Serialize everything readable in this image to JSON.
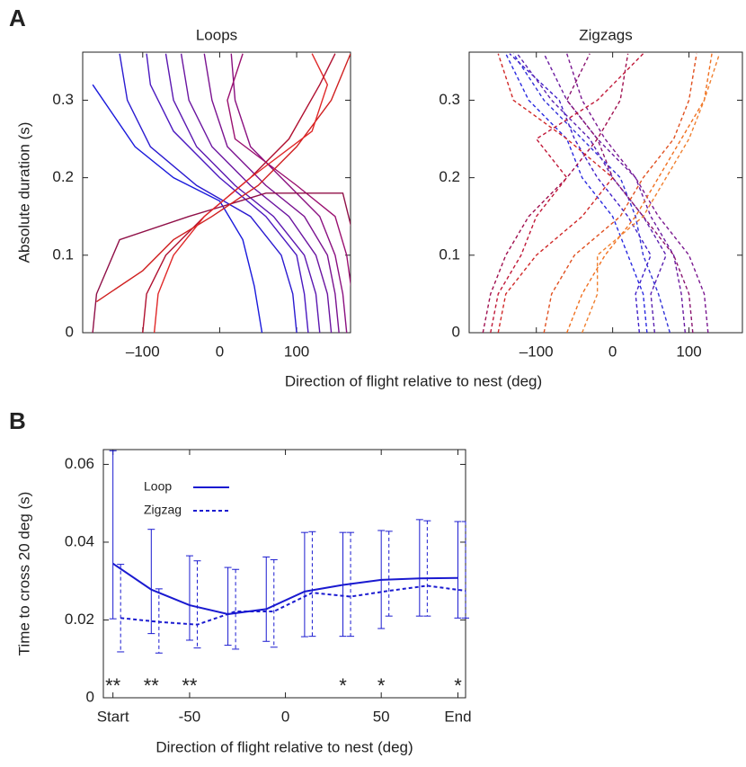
{
  "panel_labels": [
    "A",
    "B"
  ],
  "chart_data": [
    {
      "type": "line",
      "title": "Loops",
      "xlabel": "Direction of flight relative to nest (deg)",
      "ylabel": "Absolute duration (s)",
      "xlim": [
        -178,
        170
      ],
      "ylim": [
        0,
        0.362
      ],
      "xticks": [
        {
          "value": -100,
          "label": "–100"
        },
        0,
        100
      ],
      "yticks": [
        0,
        0.1,
        0.2,
        0.3
      ],
      "dashed": false,
      "series": [
        {
          "color": "#1a1adc",
          "x": [
            55,
            45,
            30,
            0,
            -60,
            -110,
            -165
          ],
          "values": [
            0,
            0.06,
            0.12,
            0.17,
            0.2,
            0.24,
            0.32
          ]
        },
        {
          "color": "#2a1ad0",
          "x": [
            100,
            95,
            80,
            40,
            -30,
            -90,
            -120,
            -130
          ],
          "values": [
            0,
            0.05,
            0.1,
            0.15,
            0.19,
            0.24,
            0.3,
            0.36
          ]
        },
        {
          "color": "#4a18c0",
          "x": [
            115,
            110,
            100,
            60,
            0,
            -60,
            -90,
            -95
          ],
          "values": [
            0,
            0.05,
            0.1,
            0.15,
            0.2,
            0.26,
            0.32,
            0.36
          ]
        },
        {
          "color": "#5a16b0",
          "x": [
            130,
            125,
            110,
            70,
            20,
            -30,
            -60,
            -70
          ],
          "values": [
            0,
            0.05,
            0.1,
            0.15,
            0.19,
            0.24,
            0.3,
            0.36
          ]
        },
        {
          "color": "#6a14a0",
          "x": [
            145,
            140,
            125,
            90,
            40,
            -10,
            -40,
            -50
          ],
          "values": [
            0,
            0.05,
            0.1,
            0.15,
            0.19,
            0.24,
            0.3,
            0.36
          ]
        },
        {
          "color": "#7a1290",
          "x": [
            155,
            150,
            140,
            110,
            60,
            10,
            -10,
            -20
          ],
          "values": [
            0,
            0.05,
            0.1,
            0.15,
            0.19,
            0.24,
            0.3,
            0.36
          ]
        },
        {
          "color": "#8a1080",
          "x": [
            165,
            160,
            150,
            130,
            90,
            40,
            20,
            15
          ],
          "values": [
            0,
            0.05,
            0.1,
            0.15,
            0.19,
            0.24,
            0.3,
            0.36
          ]
        },
        {
          "color": "#9a1070",
          "x": [
            175,
            172,
            165,
            150,
            100,
            20,
            10,
            30
          ],
          "values": [
            0,
            0.05,
            0.1,
            0.15,
            0.19,
            0.25,
            0.3,
            0.36
          ]
        },
        {
          "color": "#901048",
          "x": [
            -165,
            -160,
            -130,
            -40,
            60,
            160,
            175
          ],
          "values": [
            0,
            0.05,
            0.12,
            0.15,
            0.18,
            0.18,
            0.12
          ]
        },
        {
          "color": "#b01030",
          "x": [
            -100,
            -95,
            -70,
            -20,
            40,
            90,
            130,
            150
          ],
          "values": [
            0,
            0.05,
            0.1,
            0.15,
            0.2,
            0.25,
            0.32,
            0.36
          ]
        },
        {
          "color": "#d02020",
          "x": [
            -160,
            -100,
            -60,
            -10,
            50,
            100,
            145,
            170
          ],
          "values": [
            0.04,
            0.08,
            0.12,
            0.15,
            0.19,
            0.24,
            0.3,
            0.36
          ]
        },
        {
          "color": "#e02828",
          "x": [
            -85,
            -80,
            -60,
            -20,
            40,
            120,
            140,
            120
          ],
          "values": [
            0,
            0.05,
            0.1,
            0.15,
            0.2,
            0.26,
            0.32,
            0.36
          ]
        }
      ]
    },
    {
      "type": "line",
      "title": "Zigzags",
      "xlim": [
        -188,
        170
      ],
      "ylim": [
        0,
        0.362
      ],
      "xticks": [
        {
          "value": -100,
          "label": "–100"
        },
        0,
        100
      ],
      "yticks": [
        0,
        0.1,
        0.2,
        0.3
      ],
      "dashed": true,
      "series": [
        {
          "color": "#2a2ae0",
          "x": [
            45,
            40,
            20,
            0,
            -40,
            -60,
            -110,
            -140
          ],
          "values": [
            0,
            0.05,
            0.1,
            0.15,
            0.2,
            0.25,
            0.3,
            0.36
          ]
        },
        {
          "color": "#3030d8",
          "x": [
            75,
            60,
            40,
            30,
            10,
            -40,
            -90,
            -130
          ],
          "values": [
            0,
            0.05,
            0.1,
            0.15,
            0.2,
            0.25,
            0.3,
            0.36
          ]
        },
        {
          "color": "#4020c8",
          "x": [
            35,
            30,
            50,
            20,
            -20,
            -50,
            -70,
            -135
          ],
          "values": [
            0,
            0.05,
            0.1,
            0.15,
            0.2,
            0.25,
            0.3,
            0.36
          ]
        },
        {
          "color": "#5a20b0",
          "x": [
            55,
            50,
            70,
            40,
            0,
            -30,
            -80,
            -125
          ],
          "values": [
            0,
            0.05,
            0.1,
            0.15,
            0.2,
            0.25,
            0.3,
            0.36
          ]
        },
        {
          "color": "#6a1aa0",
          "x": [
            95,
            90,
            80,
            50,
            30,
            -20,
            -60,
            -90
          ],
          "values": [
            0,
            0.05,
            0.1,
            0.15,
            0.2,
            0.25,
            0.3,
            0.36
          ]
        },
        {
          "color": "#7a1890",
          "x": [
            125,
            120,
            100,
            60,
            30,
            -10,
            -40,
            -60
          ],
          "values": [
            0,
            0.05,
            0.1,
            0.15,
            0.2,
            0.25,
            0.3,
            0.36
          ]
        },
        {
          "color": "#8a1470",
          "x": [
            105,
            100,
            80,
            40,
            0,
            -20,
            -60,
            -30
          ],
          "values": [
            0,
            0.05,
            0.1,
            0.15,
            0.2,
            0.25,
            0.3,
            0.36
          ]
        },
        {
          "color": "#a01050",
          "x": [
            -170,
            -160,
            -140,
            -110,
            -60,
            -20,
            10,
            20
          ],
          "values": [
            0,
            0.05,
            0.1,
            0.15,
            0.2,
            0.25,
            0.3,
            0.36
          ]
        },
        {
          "color": "#c01838",
          "x": [
            -160,
            -150,
            -120,
            -100,
            -60,
            -100,
            -20,
            40
          ],
          "values": [
            0,
            0.05,
            0.1,
            0.15,
            0.2,
            0.25,
            0.3,
            0.36
          ]
        },
        {
          "color": "#d02828",
          "x": [
            -150,
            -140,
            -100,
            -40,
            0,
            -60,
            -130,
            -150
          ],
          "values": [
            0,
            0.05,
            0.1,
            0.15,
            0.2,
            0.25,
            0.3,
            0.36
          ]
        },
        {
          "color": "#e05020",
          "x": [
            -90,
            -80,
            -50,
            10,
            40,
            80,
            100,
            110
          ],
          "values": [
            0,
            0.05,
            0.1,
            0.15,
            0.2,
            0.25,
            0.3,
            0.36
          ]
        },
        {
          "color": "#f07020",
          "x": [
            -60,
            -40,
            -10,
            30,
            60,
            90,
            120,
            130
          ],
          "values": [
            0,
            0.05,
            0.1,
            0.15,
            0.2,
            0.25,
            0.3,
            0.36
          ]
        },
        {
          "color": "#f08030",
          "x": [
            -40,
            -20,
            -20,
            40,
            70,
            100,
            120,
            140
          ],
          "values": [
            0,
            0.05,
            0.1,
            0.15,
            0.2,
            0.25,
            0.3,
            0.36
          ]
        }
      ]
    },
    {
      "type": "errorline",
      "xlabel": "Direction of flight relative to nest (deg)",
      "ylabel": "Time to cross 20 deg (s)",
      "xlim": [
        -95,
        94
      ],
      "ylim": [
        0,
        0.0638
      ],
      "xticks": [
        {
          "value": -90,
          "label": "Start"
        },
        -50,
        0,
        50,
        {
          "value": 90,
          "label": "End"
        }
      ],
      "yticks": [
        0,
        0.02,
        0.04,
        0.06
      ],
      "legend": "upper left",
      "series": [
        {
          "name": "Loop",
          "color": "#1a1ad0",
          "dashed": false,
          "x": [
            -90,
            -70,
            -50,
            -30,
            -10,
            10,
            30,
            50,
            70,
            90
          ],
          "values": [
            0.0345,
            0.0278,
            0.0238,
            0.0215,
            0.0228,
            0.0273,
            0.029,
            0.0303,
            0.0307,
            0.0308
          ],
          "lower": [
            0.0203,
            0.0165,
            0.0148,
            0.0135,
            0.0145,
            0.0157,
            0.0158,
            0.0178,
            0.021,
            0.0205
          ],
          "upper": [
            0.0635,
            0.0433,
            0.0365,
            0.0335,
            0.0362,
            0.0425,
            0.0425,
            0.043,
            0.0458,
            0.0453
          ]
        },
        {
          "name": "Zigzag",
          "color": "#1a1ad0",
          "dashed": true,
          "x": [
            -86,
            -66,
            -46,
            -26,
            -6,
            14,
            34,
            54,
            74,
            94
          ],
          "values": [
            0.0205,
            0.0195,
            0.0188,
            0.0222,
            0.0222,
            0.027,
            0.026,
            0.0275,
            0.0288,
            0.0275
          ],
          "lower": [
            0.0118,
            0.0115,
            0.0128,
            0.0125,
            0.013,
            0.0158,
            0.0158,
            0.021,
            0.021,
            0.0205
          ],
          "upper": [
            0.0343,
            0.028,
            0.0352,
            0.033,
            0.0355,
            0.0427,
            0.0425,
            0.0428,
            0.0455,
            0.0453
          ]
        }
      ],
      "significance": [
        "**",
        "**",
        "**",
        null,
        null,
        null,
        "*",
        "*",
        null,
        "*"
      ]
    }
  ]
}
